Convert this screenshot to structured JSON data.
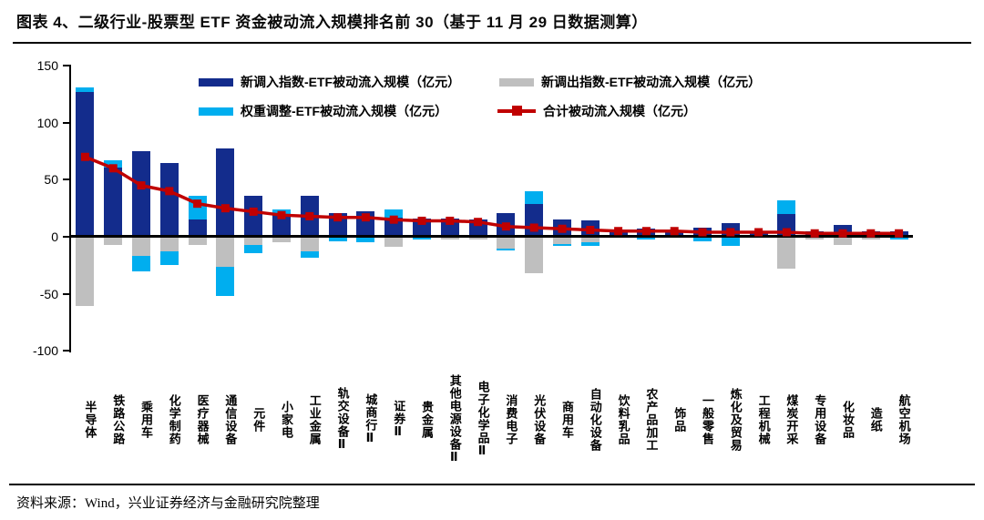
{
  "title": "图表 4、二级行业-股票型 ETF 资金被动流入规模排名前 30（基于 11 月 29 日数据测算）",
  "footer": {
    "source": "资料来源：Wind，兴业证券经济与金融研究院整理"
  },
  "colors": {
    "new_in_bar": "#132C8C",
    "new_out_bar": "#BFBFBF",
    "weight_adj_bar": "#00AEEF",
    "total_line": "#C00000",
    "axis": "#000000"
  },
  "chart_data": {
    "type": "bar",
    "subtype": "stacked-bars-with-total-line",
    "title": "二级行业-股票型 ETF 资金被动流入规模排名前 30（基于 11 月 29 日数据测算）",
    "categories": [
      "半导体",
      "铁路公路",
      "乘用车",
      "化学制药",
      "医疗器械",
      "通信设备",
      "元件",
      "小家电",
      "工业金属",
      "轨交设备Ⅱ",
      "城商行Ⅱ",
      "证券Ⅱ",
      "贵金属",
      "其他电源设备Ⅱ",
      "电子化学品Ⅱ",
      "消费电子",
      "光伏设备",
      "商用车",
      "自动化设备",
      "饮料乳品",
      "农产品加工",
      "饰品",
      "一般零售",
      "炼化及贸易",
      "工程机械",
      "煤炭开采",
      "专用设备",
      "化妆品",
      "造纸",
      "航空机场"
    ],
    "series": [
      {
        "name": "新调入指数-ETF被动流入规模（亿元）",
        "kind": "bar",
        "color": "#132C8C",
        "values": [
          127,
          61,
          75,
          65,
          15,
          77,
          36,
          20,
          36,
          21,
          22,
          17,
          16,
          16,
          15,
          21,
          29,
          15,
          14,
          6,
          7,
          5,
          8,
          12,
          5,
          20,
          5,
          10,
          5,
          5
        ]
      },
      {
        "name": "新调出指数-ETF被动流入规模（亿元）",
        "kind": "bar",
        "color": "#BFBFBF",
        "values": [
          -61,
          -7,
          -17,
          -13,
          -7,
          -26,
          -7,
          -5,
          -13,
          0,
          0,
          -9,
          0,
          -2,
          -2,
          -10,
          -32,
          -6,
          -5,
          -1,
          0,
          0,
          0,
          0,
          -1,
          -28,
          -2,
          -7,
          -2,
          0
        ]
      },
      {
        "name": "权重调整-ETF被动流入规模（亿元）",
        "kind": "bar",
        "color": "#00AEEF",
        "values": [
          4,
          6,
          -13,
          -12,
          21,
          -26,
          -7,
          4,
          -5,
          -4,
          -5,
          7,
          -2,
          0,
          0,
          -2,
          11,
          -2,
          -3,
          0,
          -2,
          0,
          -4,
          -8,
          0,
          12,
          0,
          0,
          0,
          -2
        ]
      },
      {
        "name": "合计被动流入规模（亿元）",
        "kind": "line",
        "color": "#C00000",
        "values": [
          70,
          60,
          45,
          40,
          29,
          25,
          22,
          19,
          18,
          17,
          17,
          15,
          14,
          14,
          13,
          9,
          8,
          7,
          6,
          5,
          5,
          5,
          4,
          4,
          4,
          4,
          3,
          3,
          3,
          3
        ]
      }
    ],
    "ylim": [
      -100,
      150
    ],
    "yticks": [
      150,
      100,
      50,
      0,
      -50,
      -100
    ],
    "grid": false,
    "legend_position": "top"
  }
}
